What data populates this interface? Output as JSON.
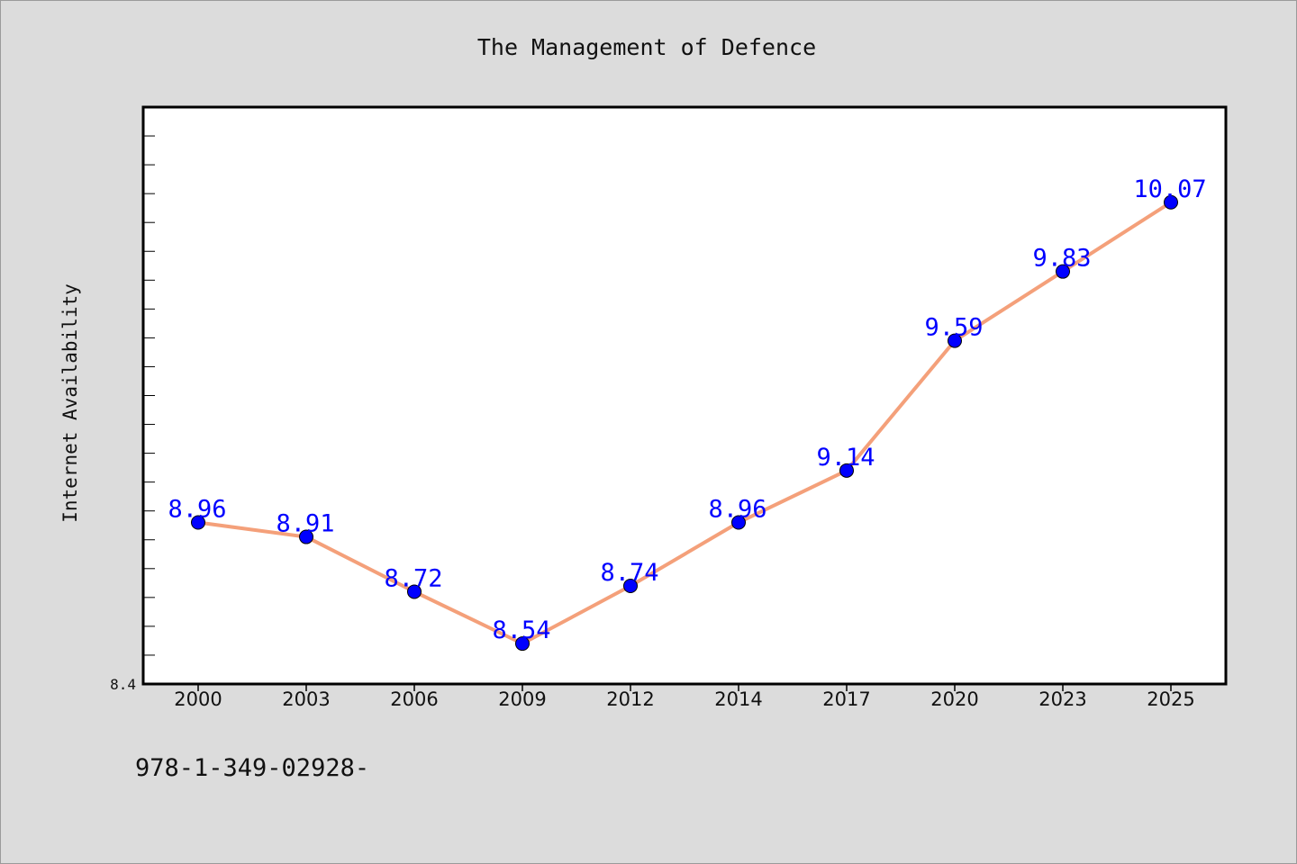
{
  "chart_data": {
    "type": "line",
    "title": "The Management of Defence",
    "xlabel": "",
    "ylabel": "Internet Availability",
    "categories": [
      "2000",
      "2003",
      "2006",
      "2009",
      "2012",
      "2014",
      "2017",
      "2020",
      "2023",
      "2025"
    ],
    "series": [
      {
        "values": [
          8.96,
          8.91,
          8.72,
          8.54,
          8.74,
          8.96,
          9.14,
          9.59,
          9.83,
          10.07
        ]
      }
    ],
    "data_labels": [
      "8.96",
      "8.91",
      "8.72",
      "8.54",
      "8.74",
      "8.96",
      "9.14",
      "9.59",
      "9.83",
      "10.07"
    ],
    "ylim": [
      8.4,
      10.4
    ],
    "ytick_labels": [
      "8.4"
    ],
    "grid": false,
    "legend": "none",
    "colors": {
      "line": "#f4a07a",
      "marker": "#0000ff",
      "data_label": "#0000ff",
      "plot_background": "#ffffff",
      "figure_background": "#dcdcdc"
    }
  },
  "footer": {
    "text": "978-1-349-02928-"
  }
}
